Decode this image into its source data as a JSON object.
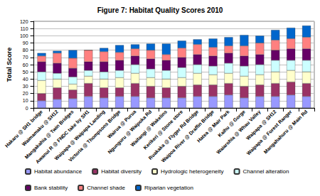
{
  "chart_data": {
    "type": "bar",
    "title": "Figure 7: Habitat Quality Scores 2010",
    "y_label": "Total Score",
    "categories": [
      "Hakaru @ SH1 bridge",
      "Waimamaku @ SH12",
      "Mangakahia @ Twin Bridges",
      "Awanui R @ FNDC take by SH1",
      "Waipapa @ Waipapa Landing",
      "Victoria @ Thompsons Bridge",
      "Wairua @ Purua",
      "Ngunguru @ Waipoka Rd",
      "Waitangi @ Wakelins",
      "Kerikeri @ Stone store",
      "Ruakaka @ Flyger Rd Bridge",
      "Waipoa River @ Draffin Bridge",
      "Hatea @ Mair Park",
      "Kaihu @ Gorge",
      "Waiarohia @ Whau Valley",
      "Waipapa @ SH12",
      "Waipapa @ Forest Ranger",
      "Mangahahuru @ Main Rd"
    ],
    "series": [
      {
        "name": "Habitat abundance",
        "color": "#9999ff",
        "values": [
          10,
          12,
          13,
          16,
          14,
          16,
          16,
          14,
          14,
          14,
          16,
          16,
          18,
          14,
          16,
          16,
          18,
          16
        ]
      },
      {
        "name": "Habitat diversity",
        "color": "#993366",
        "values": [
          10,
          16,
          12,
          18,
          14,
          12,
          18,
          16,
          14,
          16,
          16,
          16,
          16,
          16,
          16,
          18,
          18,
          18
        ]
      },
      {
        "name": "Hydrologic heterogeneity",
        "color": "#ffffcc",
        "values": [
          18,
          12,
          8,
          10,
          12,
          14,
          14,
          12,
          12,
          12,
          16,
          14,
          14,
          14,
          14,
          16,
          16,
          16
        ]
      },
      {
        "name": "Channel alteration",
        "color": "#ccffff",
        "values": [
          12,
          8,
          10,
          8,
          10,
          10,
          12,
          12,
          12,
          14,
          12,
          12,
          14,
          14,
          14,
          16,
          14,
          16
        ]
      },
      {
        "name": "Bank stability",
        "color": "#660066",
        "values": [
          14,
          14,
          12,
          12,
          14,
          14,
          12,
          14,
          14,
          14,
          14,
          14,
          14,
          14,
          14,
          14,
          16,
          16
        ]
      },
      {
        "name": "Channel shade",
        "color": "#ff8080",
        "values": [
          8,
          14,
          14,
          16,
          14,
          11,
          10,
          12,
          8,
          13,
          14,
          12,
          10,
          14,
          16,
          14,
          14,
          16
        ]
      },
      {
        "name": "Riparian vegetation",
        "color": "#0066cc",
        "values": [
          4,
          3,
          11,
          0,
          5,
          10,
          6,
          9,
          15,
          10,
          7,
          12,
          12,
          15,
          10,
          14,
          15,
          16
        ]
      }
    ],
    "stacked": true,
    "legend": "bottom",
    "grid": true,
    "ylim": [
      0,
      120
    ],
    "yticks": [
      0,
      10,
      20,
      30,
      40,
      50,
      60,
      70,
      80,
      90,
      100,
      110,
      120
    ]
  }
}
